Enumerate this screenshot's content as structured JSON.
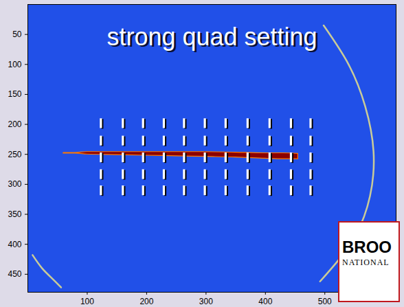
{
  "chart_data": {
    "type": "image",
    "title": "strong quad setting",
    "xlim": [
      0,
      620
    ],
    "ylim": [
      0,
      480
    ],
    "xticks": [
      100,
      200,
      300,
      400,
      500
    ],
    "yticks": [
      50,
      100,
      150,
      200,
      250,
      300,
      350,
      400,
      450
    ],
    "streak": {
      "color": "#8b0000",
      "x": [
        60,
        80,
        100,
        150,
        200,
        250,
        300,
        350,
        400,
        430,
        455
      ],
      "y1": [
        247.5,
        247.5,
        246,
        246,
        246,
        246,
        246,
        247,
        248,
        248,
        249
      ],
      "y2": [
        248.5,
        248.5,
        250,
        251,
        252,
        253,
        254,
        255,
        257,
        258,
        258
      ]
    },
    "rings": [
      {
        "color": "#e6e08a",
        "x": [
          498,
          540,
          568,
          582,
          576,
          552,
          520,
          492
        ],
        "y": [
          35,
          100,
          170,
          245,
          320,
          385,
          430,
          462
        ]
      },
      {
        "color": "#e6e08a",
        "x": [
          8,
          24,
          42,
          56
        ],
        "y": [
          418,
          440,
          458,
          472
        ]
      }
    ],
    "markers": {
      "color": "#ffffff",
      "x": [
        123,
        160,
        194,
        229,
        263,
        298,
        333,
        370,
        407,
        443,
        476
      ],
      "y": [
        198,
        227,
        255,
        283,
        310
      ]
    },
    "logo": [
      "BROO",
      "NATIONAL"
    ]
  }
}
